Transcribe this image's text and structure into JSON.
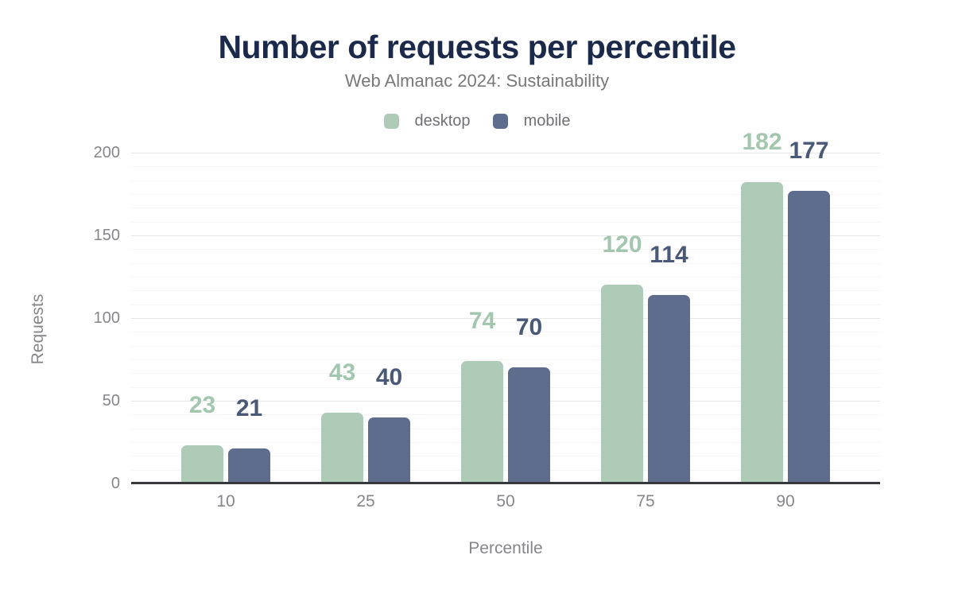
{
  "header": {
    "title": "Number of requests per percentile",
    "subtitle": "Web Almanac 2024: Sustainability"
  },
  "chart_data": {
    "type": "bar",
    "title": "Number of requests per percentile",
    "subtitle": "Web Almanac 2024: Sustainability",
    "categories": [
      "10",
      "25",
      "50",
      "75",
      "90"
    ],
    "series": [
      {
        "name": "desktop",
        "color": "#aecbb8",
        "label_color": "#a3c6af",
        "values": [
          23,
          43,
          74,
          120,
          182
        ]
      },
      {
        "name": "mobile",
        "color": "#5e6d8d",
        "label_color": "#4a5977",
        "values": [
          21,
          40,
          70,
          114,
          177
        ]
      }
    ],
    "xlabel": "Percentile",
    "ylabel": "Requests",
    "ylim": [
      0,
      200
    ],
    "yticks": [
      0,
      50,
      100,
      150,
      200
    ],
    "minor_gridlines_per_interval": 5,
    "grid": true,
    "legend_position": "top",
    "data_labels_shown": true
  },
  "colors": {
    "title_text": "#1b2a4a",
    "subtitle_text": "#77787a",
    "axis_line": "#37383c",
    "tick_text": "#85868a",
    "grid_major": "#e8e8e8",
    "grid_minor": "#f5f5f5",
    "background": "#ffffff"
  }
}
